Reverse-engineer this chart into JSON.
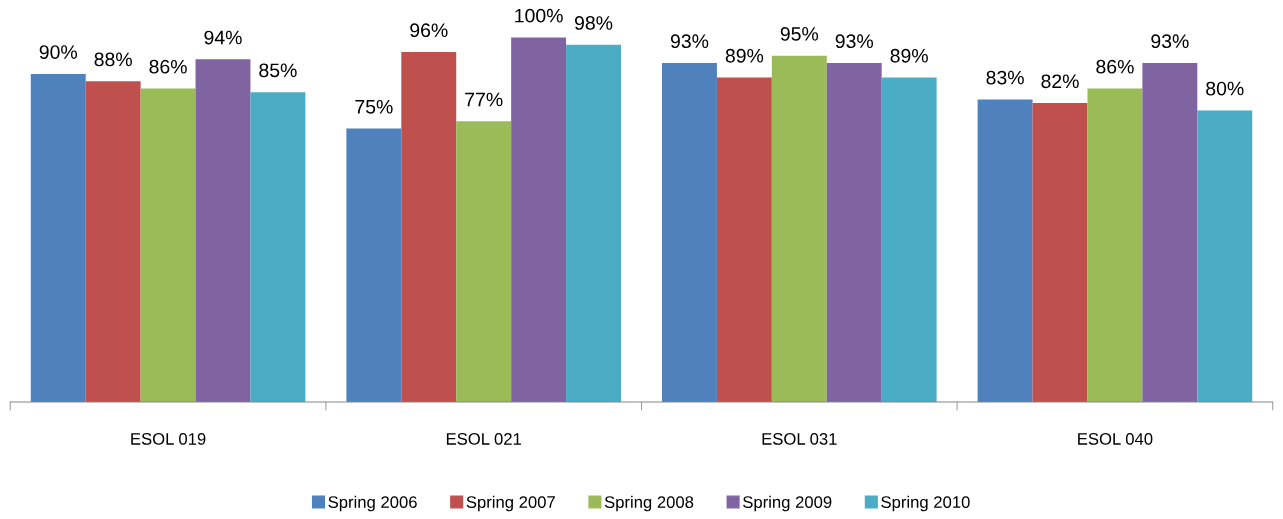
{
  "chart_data": {
    "type": "bar",
    "categories": [
      "ESOL 019",
      "ESOL 021",
      "ESOL 031",
      "ESOL 040"
    ],
    "series": [
      {
        "name": "Spring 2006",
        "color": "#4f81bd",
        "values": [
          90,
          75,
          93,
          83
        ],
        "value_labels": [
          "90%",
          "75%",
          "93%",
          "83%"
        ]
      },
      {
        "name": "Spring 2007",
        "color": "#c0504d",
        "values": [
          88,
          96,
          89,
          82
        ],
        "value_labels": [
          "88%",
          "96%",
          "89%",
          "82%"
        ]
      },
      {
        "name": "Spring 2008",
        "color": "#9bbb59",
        "values": [
          86,
          77,
          95,
          86
        ],
        "value_labels": [
          "86%",
          "77%",
          "95%",
          "86%"
        ]
      },
      {
        "name": "Spring 2009",
        "color": "#8064a2",
        "values": [
          94,
          100,
          93,
          93
        ],
        "value_labels": [
          "94%",
          "100%",
          "93%",
          "93%"
        ]
      },
      {
        "name": "Spring 2010",
        "color": "#4bacc6",
        "values": [
          85,
          98,
          89,
          80
        ],
        "value_labels": [
          "85%",
          "98%",
          "89%",
          "80%"
        ]
      }
    ],
    "tick_labels": "x",
    "legend": "bottom"
  }
}
